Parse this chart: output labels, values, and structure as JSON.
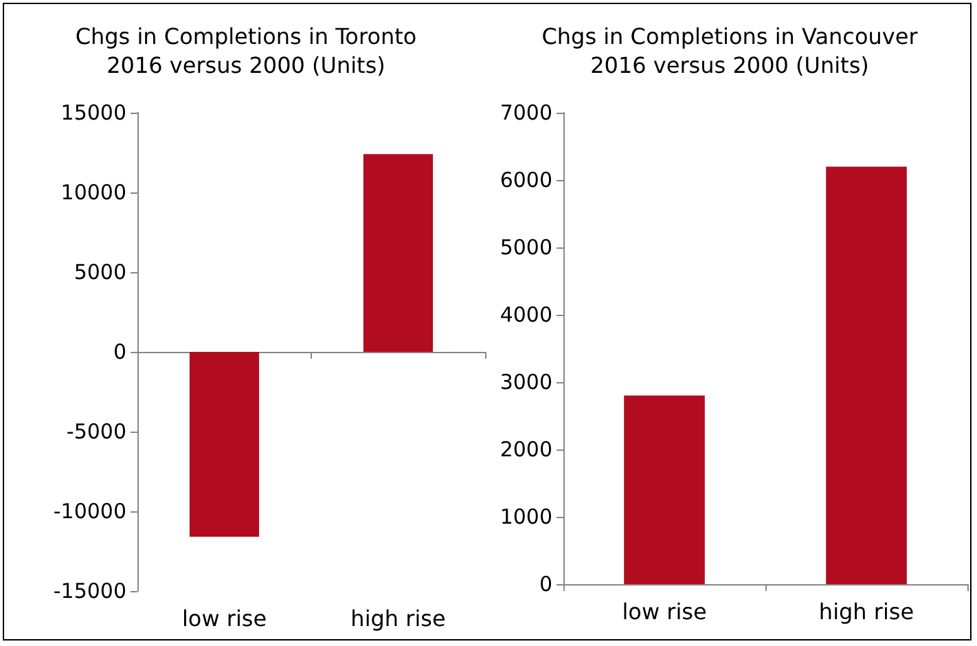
{
  "chart_data": [
    {
      "type": "bar",
      "title": "Chgs in Completions in Toronto\n2016 versus 2000 (Units)",
      "categories": [
        "low rise",
        "high rise"
      ],
      "series": [
        {
          "color": "#b10c1f",
          "values": [
            -11600,
            12400
          ]
        }
      ],
      "ylim": [
        -15000,
        15000
      ],
      "yticks": [
        -15000,
        -10000,
        -5000,
        0,
        5000,
        10000,
        15000
      ]
    },
    {
      "type": "bar",
      "title": "Chgs in Completions in Vancouver\n2016 versus 2000 (Units)",
      "categories": [
        "low rise",
        "high rise"
      ],
      "series": [
        {
          "color": "#b10c1f",
          "values": [
            2800,
            6200
          ]
        }
      ],
      "ylim": [
        0,
        7000
      ],
      "yticks": [
        0,
        1000,
        2000,
        3000,
        4000,
        5000,
        6000,
        7000
      ]
    }
  ]
}
